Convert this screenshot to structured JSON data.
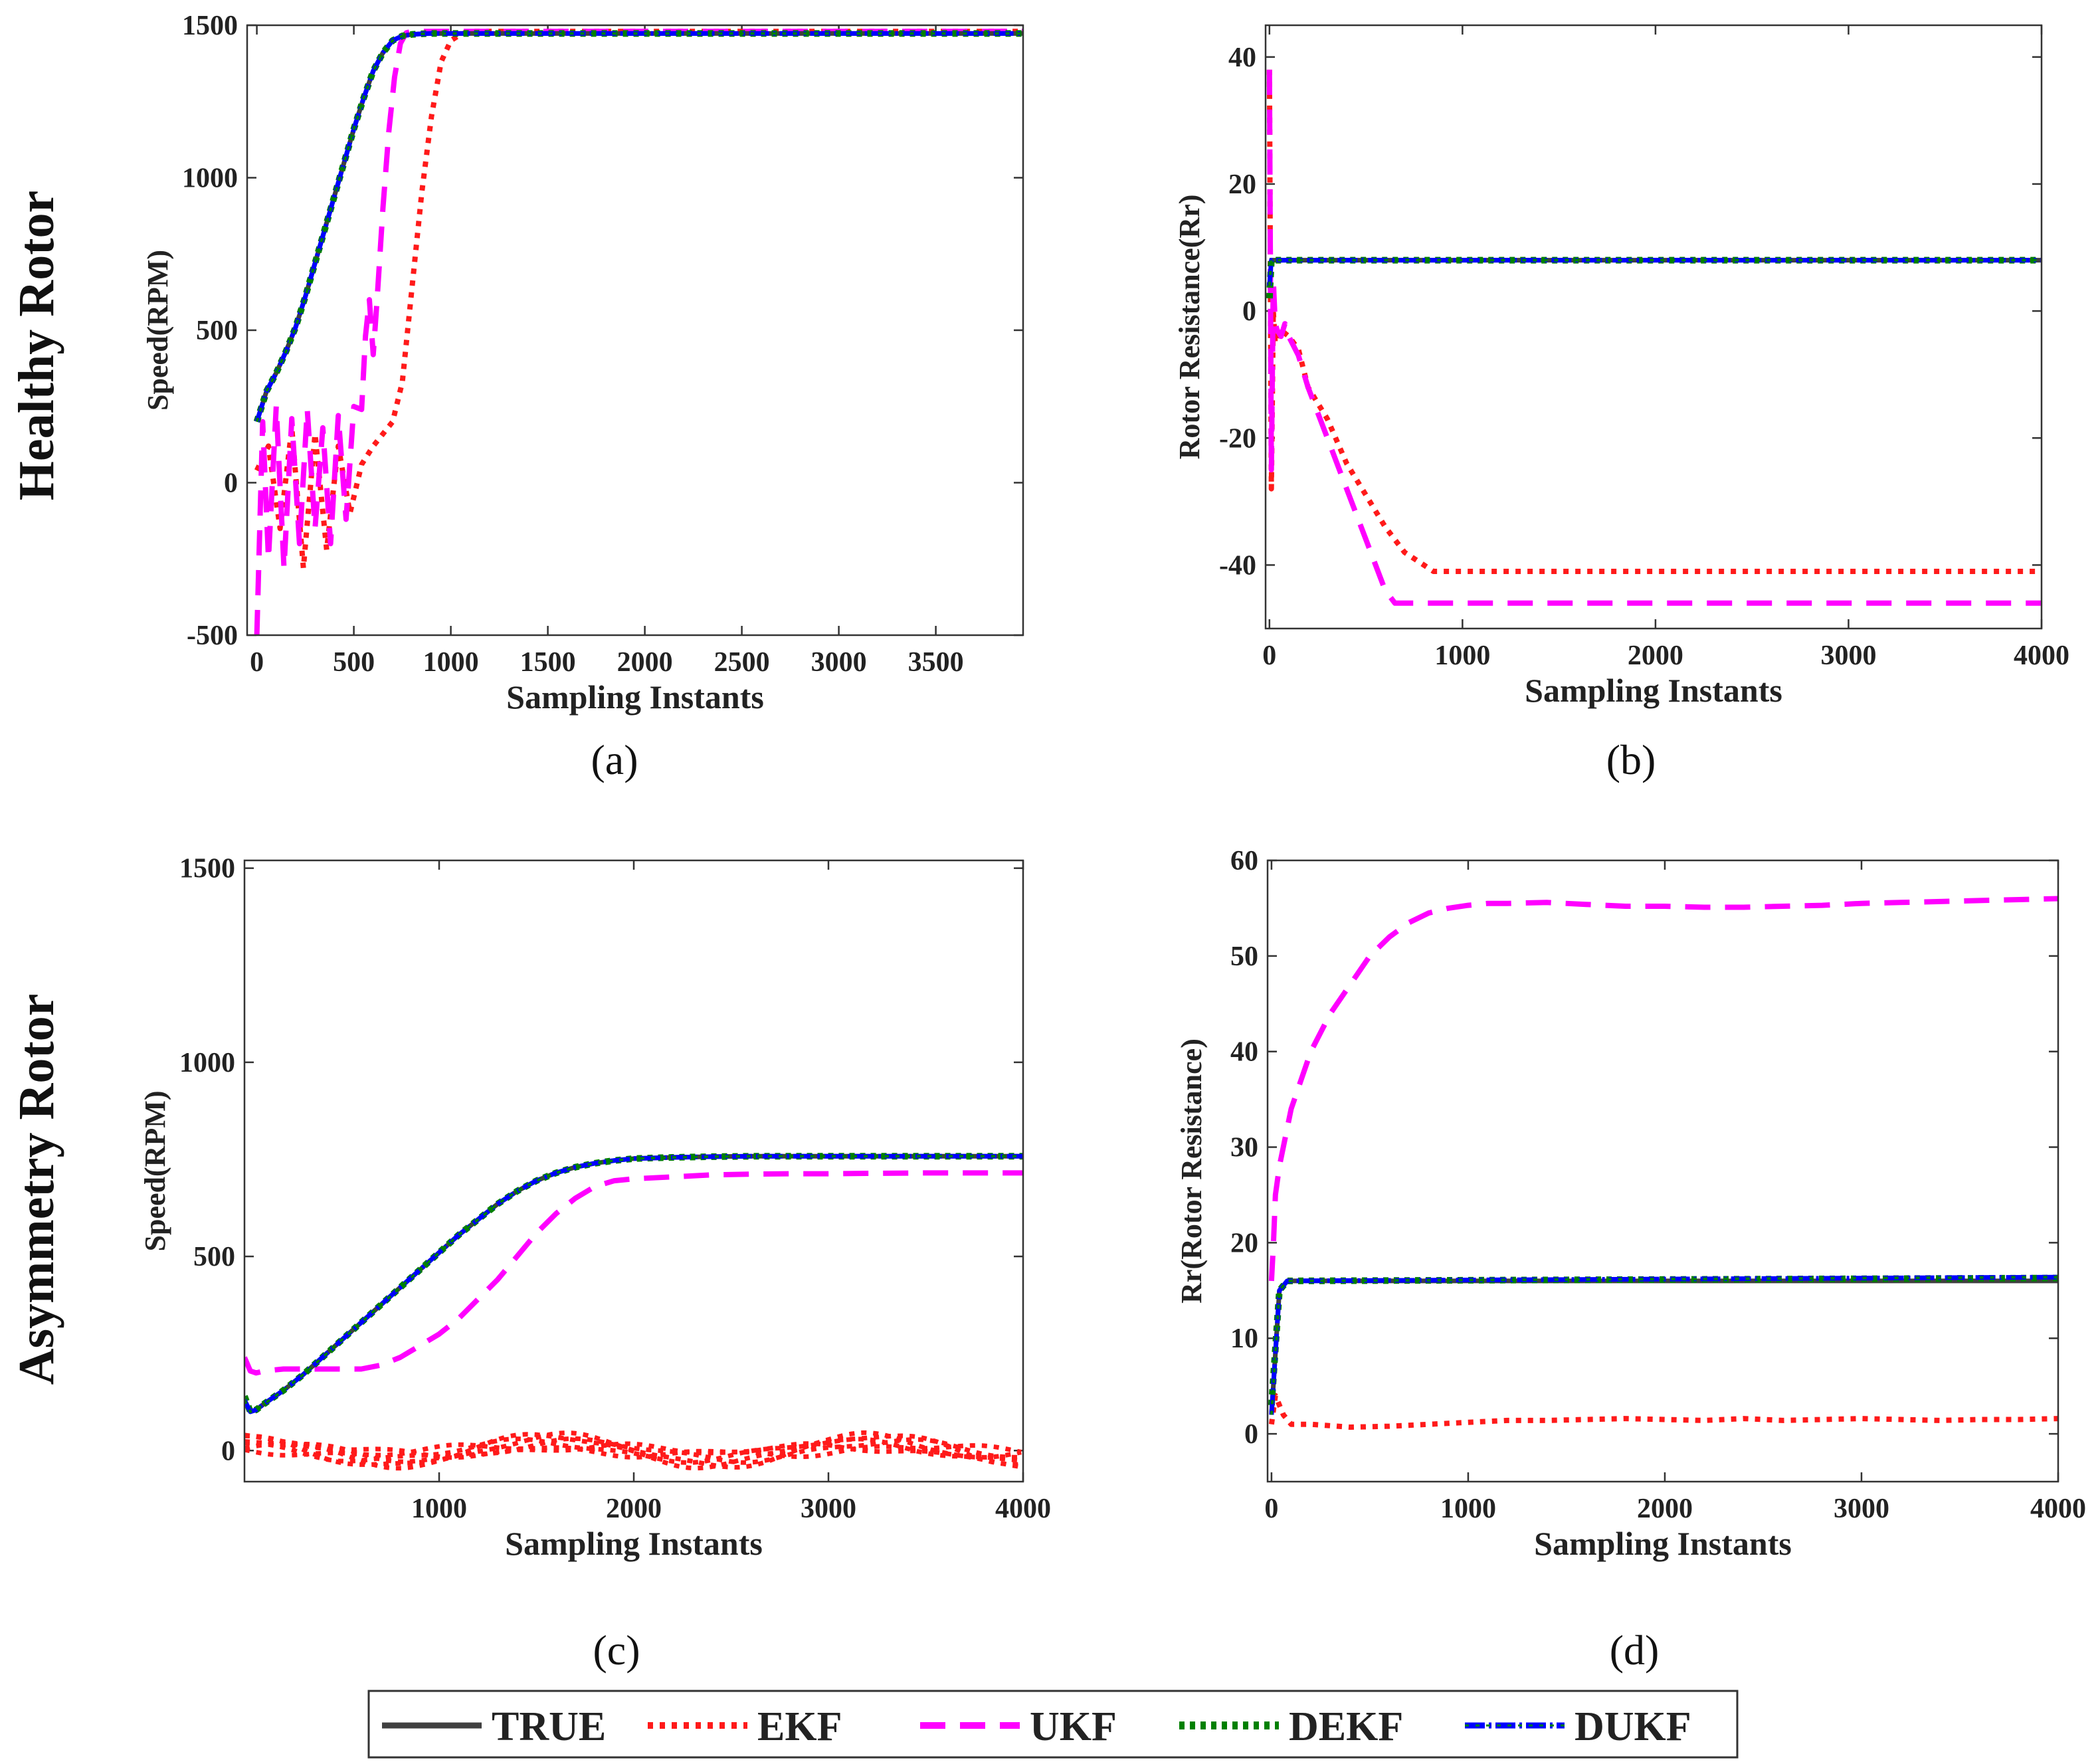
{
  "row_labels": [
    "Healthy Rotor",
    "Asymmetry Rotor"
  ],
  "colors": {
    "TRUE": "#404040",
    "EKF": "#ff1a1a",
    "UKF": "#ff00ff",
    "DEKF": "#008000",
    "DUKF": "#0000ff"
  },
  "legend": [
    "TRUE",
    "EKF",
    "UKF",
    "DEKF",
    "DUKF"
  ],
  "chart_data": [
    {
      "id": "a",
      "panel_label": "(a)",
      "type": "line",
      "xlabel": "Sampling Instants",
      "ylabel": "Speed(RPM)",
      "xlim": [
        -50,
        3950
      ],
      "ylim": [
        -500,
        1500
      ],
      "xticks": [
        0,
        500,
        1000,
        1500,
        2000,
        2500,
        3000,
        3500
      ],
      "xtick_labels": [
        "0",
        "500",
        "1000",
        "1500",
        "2000",
        "2500",
        "3000",
        "3500"
      ],
      "yticks": [
        -500,
        0,
        500,
        1000,
        1500
      ],
      "ytick_labels": [
        "-500",
        "0",
        "500",
        "1000",
        "1500"
      ],
      "series": [
        {
          "name": "EKF",
          "x": [
            0,
            60,
            120,
            180,
            240,
            300,
            360,
            420,
            480,
            540,
            600,
            650,
            700,
            750,
            800,
            850,
            900,
            950,
            1000,
            1050,
            1100,
            3950
          ],
          "y": [
            40,
            120,
            -150,
            180,
            -280,
            160,
            -220,
            120,
            -100,
            60,
            120,
            160,
            200,
            330,
            640,
            950,
            1200,
            1380,
            1450,
            1470,
            1480,
            1480
          ]
        },
        {
          "name": "UKF",
          "x": [
            0,
            30,
            60,
            100,
            140,
            180,
            220,
            260,
            300,
            340,
            380,
            420,
            460,
            500,
            540,
            560,
            580,
            600,
            620,
            650,
            680,
            710,
            740,
            770,
            800,
            3950
          ],
          "y": [
            -500,
            200,
            -250,
            250,
            -280,
            210,
            -200,
            240,
            -150,
            180,
            -200,
            220,
            -120,
            250,
            240,
            480,
            600,
            420,
            600,
            900,
            1150,
            1330,
            1440,
            1475,
            1480,
            1480
          ]
        },
        {
          "name": "TRUE",
          "x": [
            0,
            50,
            100,
            150,
            200,
            250,
            300,
            350,
            400,
            450,
            500,
            550,
            600,
            650,
            700,
            750,
            800,
            850,
            900,
            1000,
            1100,
            3950
          ],
          "y": [
            200,
            300,
            360,
            430,
            510,
            610,
            720,
            830,
            940,
            1050,
            1160,
            1260,
            1350,
            1410,
            1450,
            1465,
            1470,
            1472,
            1473,
            1473,
            1473,
            1473
          ]
        },
        {
          "name": "DEKF",
          "x": [
            0,
            50,
            100,
            150,
            200,
            250,
            300,
            350,
            400,
            450,
            500,
            550,
            600,
            650,
            700,
            750,
            800,
            850,
            900,
            1000,
            1100,
            3950
          ],
          "y": [
            200,
            300,
            360,
            430,
            510,
            610,
            720,
            830,
            940,
            1050,
            1160,
            1260,
            1350,
            1410,
            1450,
            1465,
            1470,
            1472,
            1473,
            1473,
            1473,
            1473
          ]
        },
        {
          "name": "DUKF",
          "x": [
            0,
            50,
            100,
            150,
            200,
            250,
            300,
            350,
            400,
            450,
            500,
            550,
            600,
            650,
            700,
            750,
            800,
            850,
            900,
            1000,
            1100,
            3950
          ],
          "y": [
            200,
            300,
            360,
            430,
            510,
            610,
            720,
            830,
            940,
            1050,
            1160,
            1260,
            1350,
            1410,
            1450,
            1465,
            1470,
            1472,
            1473,
            1473,
            1473,
            1473
          ]
        }
      ]
    },
    {
      "id": "b",
      "panel_label": "(b)",
      "type": "line",
      "xlabel": "Sampling Instants",
      "ylabel": "Rotor Resistance(Rr)",
      "xlim": [
        -20,
        4000
      ],
      "ylim": [
        -50,
        45
      ],
      "xticks": [
        0,
        1000,
        2000,
        3000,
        4000
      ],
      "xtick_labels": [
        "0",
        "1000",
        "2000",
        "3000",
        "4000"
      ],
      "yticks": [
        -40,
        -20,
        0,
        20,
        40
      ],
      "ytick_labels": [
        "-40",
        "-20",
        "0",
        "20",
        "40"
      ],
      "series": [
        {
          "name": "EKF",
          "x": [
            0,
            10,
            20,
            30,
            40,
            60,
            100,
            150,
            200,
            300,
            400,
            500,
            600,
            700,
            800,
            850,
            900,
            1000,
            4000
          ],
          "y": [
            38,
            -28,
            0,
            -5,
            -4,
            -3,
            -4,
            -6,
            -12,
            -17,
            -24,
            -29,
            -34,
            -38,
            -40,
            -41,
            -41,
            -41,
            -41
          ]
        },
        {
          "name": "UKF",
          "x": [
            0,
            10,
            20,
            30,
            40,
            60,
            80,
            100,
            150,
            200,
            300,
            400,
            500,
            550,
            600,
            650,
            700,
            750,
            4000
          ],
          "y": [
            38,
            -25,
            5,
            -2,
            -3,
            -4,
            -2,
            -4,
            -7,
            -12,
            -20,
            -28,
            -36,
            -40,
            -44,
            -46,
            -46,
            -46,
            -46
          ]
        },
        {
          "name": "TRUE",
          "x": [
            0,
            30,
            4000
          ],
          "y": [
            8,
            8,
            8
          ]
        },
        {
          "name": "DEKF",
          "x": [
            0,
            10,
            30,
            4000
          ],
          "y": [
            2,
            8,
            8,
            8
          ]
        },
        {
          "name": "DUKF",
          "x": [
            0,
            10,
            30,
            4000
          ],
          "y": [
            4,
            8,
            8,
            8
          ]
        }
      ]
    },
    {
      "id": "c",
      "panel_label": "(c)",
      "type": "line",
      "xlabel": "Sampling Instants",
      "ylabel": "Speed(RPM)",
      "xlim": [
        0,
        4000
      ],
      "ylim": [
        -80,
        1520
      ],
      "xticks": [
        1000,
        2000,
        3000,
        4000
      ],
      "xtick_labels": [
        "1000",
        "2000",
        "3000",
        "4000"
      ],
      "yticks": [
        0,
        500,
        1000,
        1500
      ],
      "ytick_labels": [
        "0",
        "500",
        "1000",
        "1500"
      ],
      "series": [
        {
          "name": "EKF",
          "x": [
            0,
            4000
          ],
          "y": [
            0,
            0
          ]
        },
        {
          "name": "UKF",
          "x": [
            0,
            30,
            60,
            100,
            200,
            300,
            400,
            500,
            600,
            700,
            800,
            900,
            1000,
            1100,
            1200,
            1300,
            1400,
            1500,
            1600,
            1700,
            1800,
            1900,
            2000,
            2200,
            2400,
            2600,
            2800,
            3000,
            3200,
            3500,
            4000
          ],
          "y": [
            240,
            205,
            200,
            205,
            210,
            210,
            210,
            210,
            210,
            220,
            240,
            270,
            300,
            340,
            390,
            440,
            500,
            560,
            610,
            650,
            680,
            695,
            700,
            705,
            710,
            712,
            713,
            713,
            714,
            715,
            715
          ]
        },
        {
          "name": "TRUE",
          "x": [
            0,
            30,
            60,
            100,
            200,
            300,
            400,
            500,
            600,
            700,
            800,
            900,
            1000,
            1100,
            1200,
            1300,
            1400,
            1500,
            1600,
            1700,
            1800,
            1900,
            2000,
            2200,
            2400,
            2600,
            2800,
            3000,
            3500,
            4000
          ],
          "y": [
            130,
            100,
            105,
            120,
            155,
            195,
            240,
            285,
            330,
            375,
            420,
            465,
            510,
            555,
            595,
            635,
            668,
            695,
            715,
            730,
            740,
            747,
            752,
            755,
            757,
            758,
            758,
            758,
            758,
            758
          ]
        },
        {
          "name": "DEKF",
          "x": [
            0,
            30,
            60,
            100,
            200,
            300,
            400,
            500,
            600,
            700,
            800,
            900,
            1000,
            1100,
            1200,
            1300,
            1400,
            1500,
            1600,
            1700,
            1800,
            1900,
            2000,
            2200,
            2400,
            2600,
            2800,
            3000,
            3500,
            4000
          ],
          "y": [
            140,
            100,
            105,
            120,
            155,
            195,
            240,
            285,
            330,
            375,
            420,
            465,
            510,
            555,
            595,
            635,
            668,
            695,
            715,
            730,
            740,
            747,
            752,
            755,
            757,
            758,
            758,
            758,
            758,
            758
          ]
        },
        {
          "name": "DUKF",
          "x": [
            0,
            30,
            60,
            100,
            200,
            300,
            400,
            500,
            600,
            700,
            800,
            900,
            1000,
            1100,
            1200,
            1300,
            1400,
            1500,
            1600,
            1700,
            1800,
            1900,
            2000,
            2200,
            2400,
            2600,
            2800,
            3000,
            3500,
            4000
          ],
          "y": [
            130,
            100,
            105,
            120,
            155,
            195,
            240,
            285,
            330,
            375,
            420,
            465,
            510,
            555,
            595,
            635,
            668,
            695,
            715,
            730,
            740,
            747,
            752,
            755,
            757,
            758,
            758,
            758,
            758,
            758
          ]
        }
      ]
    },
    {
      "id": "d",
      "panel_label": "(d)",
      "type": "line",
      "xlabel": "Sampling Instants",
      "ylabel": "Rr(Rotor Resistance)",
      "xlim": [
        -20,
        4000
      ],
      "ylim": [
        -5,
        60
      ],
      "xticks": [
        0,
        1000,
        2000,
        3000,
        4000
      ],
      "xtick_labels": [
        "0",
        "1000",
        "2000",
        "3000",
        "4000"
      ],
      "yticks": [
        0,
        10,
        20,
        30,
        40,
        50,
        60
      ],
      "ytick_labels": [
        "0",
        "10",
        "20",
        "30",
        "40",
        "50",
        "60"
      ],
      "series": [
        {
          "name": "EKF",
          "x": [
            0,
            20,
            40,
            60,
            100,
            200,
            400,
            600,
            800,
            1000,
            1200,
            1400,
            1600,
            1800,
            2000,
            2200,
            2400,
            2600,
            2800,
            3000,
            3200,
            3400,
            3600,
            3800,
            4000
          ],
          "y": [
            1,
            4,
            3,
            2,
            1,
            1,
            0.7,
            0.8,
            1,
            1.2,
            1.4,
            1.4,
            1.5,
            1.6,
            1.5,
            1.4,
            1.6,
            1.4,
            1.5,
            1.6,
            1.5,
            1.4,
            1.5,
            1.5,
            1.6
          ]
        },
        {
          "name": "UKF",
          "x": [
            0,
            10,
            20,
            40,
            60,
            100,
            150,
            200,
            300,
            400,
            500,
            600,
            700,
            800,
            900,
            1000,
            1100,
            1200,
            1400,
            1600,
            1800,
            2000,
            2200,
            2400,
            2600,
            2800,
            3000,
            3200,
            3400,
            3600,
            3800,
            4000
          ],
          "y": [
            16,
            20,
            25,
            28,
            30,
            34,
            37,
            40,
            44,
            47,
            50,
            52,
            53.5,
            54.5,
            55,
            55.3,
            55.5,
            55.5,
            55.6,
            55.4,
            55.2,
            55.2,
            55.1,
            55.1,
            55.2,
            55.3,
            55.5,
            55.6,
            55.7,
            55.8,
            55.9,
            56
          ]
        },
        {
          "name": "TRUE",
          "x": [
            0,
            40,
            80,
            4000
          ],
          "y": [
            2,
            15,
            16,
            16
          ]
        },
        {
          "name": "DEKF",
          "x": [
            0,
            40,
            80,
            4000
          ],
          "y": [
            3,
            15,
            16,
            16.3
          ]
        },
        {
          "name": "DUKF",
          "x": [
            0,
            40,
            80,
            4000
          ],
          "y": [
            2,
            15,
            16,
            16.4
          ]
        }
      ]
    }
  ]
}
